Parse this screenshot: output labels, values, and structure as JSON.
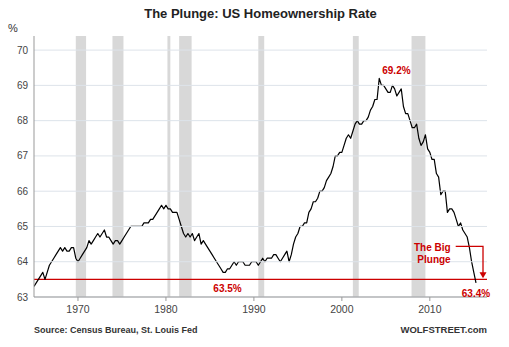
{
  "chart_data": {
    "type": "line",
    "title": "The Plunge: US Homeownership Rate",
    "ylabel": "%",
    "source": "Source: Census Bureau, St. Louis Fed",
    "watermark": "WOLFSTREET.com",
    "color": "#000000",
    "grid": "y",
    "xlim": [
      1965.0,
      2016.5
    ],
    "ylim": [
      63.0,
      70.4
    ],
    "xticks": [
      1970,
      1980,
      1990,
      2000,
      2010
    ],
    "yticks": [
      63,
      64,
      65,
      66,
      67,
      68,
      69,
      70
    ],
    "recessions": {
      "color": "#c8c8c8",
      "spans": [
        [
          1969.75,
          1970.92
        ],
        [
          1973.92,
          1975.17
        ],
        [
          1980.17,
          1980.5
        ],
        [
          1981.5,
          1982.92
        ],
        [
          1990.5,
          1991.17
        ],
        [
          2001.25,
          2001.92
        ],
        [
          2007.92,
          2009.5
        ]
      ]
    },
    "reference_line": {
      "value": 63.5,
      "color": "#cc0000"
    },
    "annotations": [
      {
        "text": "69.2%",
        "x": 2004.25,
        "y": 69.2,
        "color": "#cc0000"
      },
      {
        "text": "63.5%",
        "x": 1987.0,
        "y": 63.5,
        "color": "#cc0000"
      },
      {
        "text": "63.4%",
        "x": 2015.25,
        "y": 63.4,
        "color": "#cc0000"
      },
      {
        "text": "The Big\nPlunge",
        "x": 2012.6,
        "y": 64.55,
        "color": "#cc0000"
      }
    ],
    "x": [
      1965.0,
      1965.25,
      1965.5,
      1965.75,
      1966.0,
      1966.25,
      1966.5,
      1966.75,
      1967.0,
      1967.25,
      1967.5,
      1967.75,
      1968.0,
      1968.25,
      1968.5,
      1968.75,
      1969.0,
      1969.25,
      1969.5,
      1969.75,
      1970.0,
      1970.25,
      1970.5,
      1970.75,
      1971.0,
      1971.25,
      1971.5,
      1971.75,
      1972.0,
      1972.25,
      1972.5,
      1972.75,
      1973.0,
      1973.25,
      1973.5,
      1973.75,
      1974.0,
      1974.25,
      1974.5,
      1974.75,
      1975.0,
      1975.25,
      1975.5,
      1975.75,
      1976.0,
      1976.25,
      1976.5,
      1976.75,
      1977.0,
      1977.25,
      1977.5,
      1977.75,
      1978.0,
      1978.25,
      1978.5,
      1978.75,
      1979.0,
      1979.25,
      1979.5,
      1979.75,
      1980.0,
      1980.25,
      1980.5,
      1980.75,
      1981.0,
      1981.25,
      1981.5,
      1981.75,
      1982.0,
      1982.25,
      1982.5,
      1982.75,
      1983.0,
      1983.25,
      1983.5,
      1983.75,
      1984.0,
      1984.25,
      1984.5,
      1984.75,
      1985.0,
      1985.25,
      1985.5,
      1985.75,
      1986.0,
      1986.25,
      1986.5,
      1986.75,
      1987.0,
      1987.25,
      1987.5,
      1987.75,
      1988.0,
      1988.25,
      1988.5,
      1988.75,
      1989.0,
      1989.25,
      1989.5,
      1989.75,
      1990.0,
      1990.25,
      1990.5,
      1990.75,
      1991.0,
      1991.25,
      1991.5,
      1991.75,
      1992.0,
      1992.25,
      1992.5,
      1992.75,
      1993.0,
      1993.25,
      1993.5,
      1993.75,
      1994.0,
      1994.25,
      1994.5,
      1994.75,
      1995.0,
      1995.25,
      1995.5,
      1995.75,
      1996.0,
      1996.25,
      1996.5,
      1996.75,
      1997.0,
      1997.25,
      1997.5,
      1997.75,
      1998.0,
      1998.25,
      1998.5,
      1998.75,
      1999.0,
      1999.25,
      1999.5,
      1999.75,
      2000.0,
      2000.25,
      2000.5,
      2000.75,
      2001.0,
      2001.25,
      2001.5,
      2001.75,
      2002.0,
      2002.25,
      2002.5,
      2002.75,
      2003.0,
      2003.25,
      2003.5,
      2003.75,
      2004.0,
      2004.25,
      2004.5,
      2004.75,
      2005.0,
      2005.25,
      2005.5,
      2005.75,
      2006.0,
      2006.25,
      2006.5,
      2006.75,
      2007.0,
      2007.25,
      2007.5,
      2007.75,
      2008.0,
      2008.25,
      2008.5,
      2008.75,
      2009.0,
      2009.25,
      2009.5,
      2009.75,
      2010.0,
      2010.25,
      2010.5,
      2010.75,
      2011.0,
      2011.25,
      2011.5,
      2011.75,
      2012.0,
      2012.25,
      2012.5,
      2012.75,
      2013.0,
      2013.25,
      2013.5,
      2013.75,
      2014.0,
      2014.25,
      2014.5,
      2014.75,
      2015.0,
      2015.25
    ],
    "values": [
      63.3,
      63.4,
      63.5,
      63.6,
      63.7,
      63.5,
      63.7,
      63.9,
      64.0,
      64.1,
      64.2,
      64.3,
      64.4,
      64.3,
      64.4,
      64.3,
      64.3,
      64.4,
      64.4,
      64.1,
      64.0,
      64.1,
      64.2,
      64.3,
      64.4,
      64.6,
      64.5,
      64.6,
      64.7,
      64.8,
      64.7,
      64.8,
      64.9,
      64.7,
      64.7,
      64.6,
      64.5,
      64.6,
      64.6,
      64.5,
      64.6,
      64.7,
      64.8,
      64.9,
      65.0,
      65.0,
      65.0,
      65.0,
      65.0,
      65.0,
      65.1,
      65.1,
      65.1,
      65.2,
      65.2,
      65.3,
      65.4,
      65.5,
      65.6,
      65.5,
      65.6,
      65.5,
      65.5,
      65.4,
      65.4,
      65.4,
      65.2,
      65.0,
      64.8,
      64.7,
      64.8,
      64.7,
      64.8,
      64.6,
      64.7,
      64.8,
      64.5,
      64.6,
      64.5,
      64.4,
      64.3,
      64.2,
      64.1,
      64.0,
      63.9,
      63.8,
      63.7,
      63.7,
      63.8,
      63.8,
      63.9,
      64.0,
      63.9,
      64.0,
      64.0,
      64.0,
      63.9,
      63.9,
      63.9,
      64.0,
      64.0,
      64.0,
      63.9,
      64.0,
      64.1,
      64.0,
      64.1,
      64.1,
      64.1,
      64.2,
      64.2,
      64.1,
      64.0,
      64.1,
      64.2,
      64.3,
      64.0,
      64.2,
      64.5,
      64.7,
      64.8,
      65.0,
      65.0,
      65.1,
      65.1,
      65.4,
      65.5,
      65.7,
      65.7,
      65.8,
      66.0,
      66.0,
      66.1,
      66.3,
      66.4,
      66.5,
      66.7,
      67.0,
      67.0,
      67.1,
      67.1,
      67.3,
      67.5,
      67.6,
      67.5,
      67.7,
      67.9,
      68.0,
      67.9,
      67.9,
      68.0,
      68.0,
      68.1,
      68.3,
      68.4,
      68.6,
      68.6,
      69.2,
      69.0,
      69.0,
      68.9,
      68.8,
      68.8,
      69.0,
      68.9,
      68.7,
      68.8,
      68.9,
      68.4,
      68.2,
      68.2,
      68.0,
      67.8,
      67.8,
      67.9,
      67.5,
      67.3,
      67.4,
      67.6,
      67.2,
      67.1,
      66.9,
      66.9,
      66.5,
      66.4,
      65.9,
      66.0,
      66.0,
      65.4,
      65.5,
      65.5,
      65.4,
      65.2,
      65.0,
      65.1,
      64.9,
      64.8,
      64.7,
      64.4,
      64.0,
      63.7,
      63.4
    ]
  }
}
